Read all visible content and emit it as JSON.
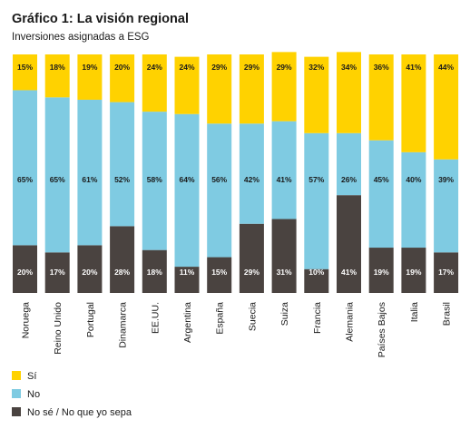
{
  "chart_data": {
    "type": "bar",
    "stacked": true,
    "normalized": true,
    "title": "Gráfico 1: La visión regional",
    "subtitle": "Inversiones asignadas a ESG",
    "categories": [
      "Noruega",
      "Reino Unido",
      "Portugal",
      "Dinamarca",
      "EE.UU.",
      "Argentina",
      "España",
      "Suecia",
      "Suiza",
      "Francia",
      "Alemania",
      "Países Bajos",
      "Italia",
      "Brasil"
    ],
    "series": [
      {
        "name": "No sé / No que yo sepa",
        "color": "#4a4340",
        "label_color": "#ffffff",
        "values": [
          20,
          17,
          20,
          28,
          18,
          11,
          15,
          29,
          31,
          10,
          41,
          19,
          19,
          17
        ]
      },
      {
        "name": "No",
        "color": "#7fcbe2",
        "label_color": "#1a1a1a",
        "values": [
          65,
          65,
          61,
          52,
          58,
          64,
          56,
          42,
          41,
          57,
          26,
          45,
          40,
          39
        ]
      },
      {
        "name": "Sí",
        "color": "#ffd200",
        "label_color": "#1a1a1a",
        "values": [
          15,
          18,
          19,
          20,
          24,
          24,
          29,
          29,
          29,
          32,
          34,
          36,
          41,
          44
        ]
      }
    ],
    "value_suffix": "%",
    "legend_order": [
      "Sí",
      "No",
      "No sé / No que yo sepa"
    ],
    "legend_position": "bottom-left",
    "grid": false
  }
}
